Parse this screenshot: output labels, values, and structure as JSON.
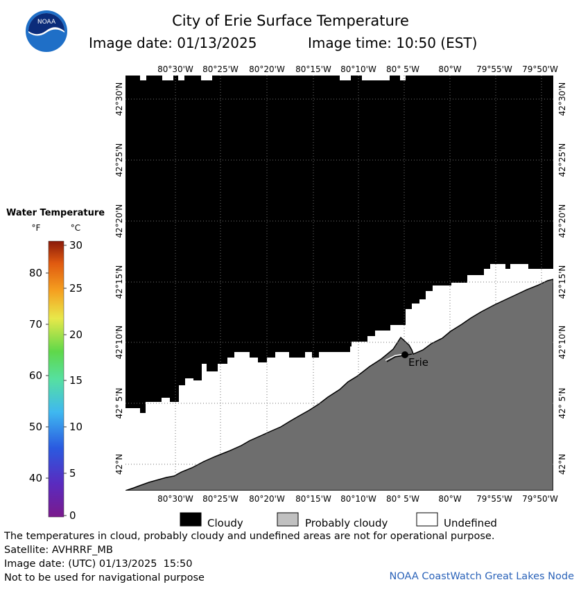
{
  "header": {
    "title": "City of Erie Surface Temperature",
    "date_label": "Image date: 01/13/2025",
    "time_label": "Image time: 10:50 (EST)",
    "logo_text": "NOAA"
  },
  "map": {
    "lon_labels_top": [
      "80°30'W",
      "80°25'W",
      "80°20'W",
      "80°15'W",
      "80°10'W",
      "80° 5'W",
      "80°W",
      "79°55'W",
      "79°50'W"
    ],
    "lon_labels_bottom": [
      "80°30'W",
      "80°25'W",
      "80°20'W",
      "80°15'W",
      "80°10'W",
      "80° 5'W",
      "80°W",
      "79°55'W",
      "79°50'W"
    ],
    "lat_labels": [
      "42°30'N",
      "42°25'N",
      "42°20'N",
      "42°15'N",
      "42°10'N",
      "42° 5'N",
      "42°N"
    ],
    "city_label": "Erie",
    "colors": {
      "cloud": "#000000",
      "land": "#6e6e6e",
      "undefined": "#ffffff",
      "grid": "#9a9a9a"
    }
  },
  "legend": {
    "title": "Water Temperature",
    "unit_f": "°F",
    "unit_c": "°C",
    "fahrenheit_ticks": [
      "80",
      "70",
      "60",
      "50",
      "40"
    ],
    "celsius_ticks": [
      "30",
      "25",
      "20",
      "15",
      "10",
      "5",
      "0"
    ]
  },
  "key": {
    "items": [
      {
        "label": "Cloudy",
        "color": "#000000"
      },
      {
        "label": "Probably cloudy",
        "color": "#c0c0c0"
      },
      {
        "label": "Undefined",
        "color": "#ffffff"
      }
    ]
  },
  "footer": {
    "disclaimer": "The temperatures in cloud, probably cloudy and undefined areas are not for operational purpose.",
    "satellite": "Satellite: AVHRRF_MB",
    "utc_date": "Image date: (UTC) 01/13/2025  15:50",
    "navigation": "Not to be used for navigational purpose",
    "credit": "NOAA CoastWatch Great Lakes Node"
  }
}
